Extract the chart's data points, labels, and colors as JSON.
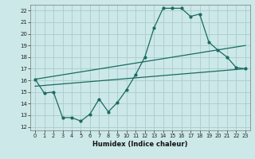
{
  "xlabel": "Humidex (Indice chaleur)",
  "bg_color": "#cce8e8",
  "grid_color": "#aacccc",
  "line_color": "#1a6b60",
  "xlim": [
    -0.5,
    23.5
  ],
  "ylim": [
    11.7,
    22.5
  ],
  "yticks": [
    12,
    13,
    14,
    15,
    16,
    17,
    18,
    19,
    20,
    21,
    22
  ],
  "xticks": [
    0,
    1,
    2,
    3,
    4,
    5,
    6,
    7,
    8,
    9,
    10,
    11,
    12,
    13,
    14,
    15,
    16,
    17,
    18,
    19,
    20,
    21,
    22,
    23
  ],
  "line1_x": [
    0,
    1,
    2,
    3,
    4,
    5,
    6,
    7,
    8,
    9,
    10,
    11,
    12,
    13,
    14,
    15,
    16,
    17,
    18,
    19,
    20,
    21,
    22,
    23
  ],
  "line1_y": [
    16.1,
    14.9,
    15.0,
    12.8,
    12.8,
    12.5,
    13.1,
    14.4,
    13.3,
    14.1,
    15.2,
    16.5,
    18.0,
    20.5,
    22.2,
    22.2,
    22.2,
    21.5,
    21.7,
    19.3,
    18.6,
    18.0,
    17.1,
    17.0
  ],
  "line2_x": [
    0,
    23
  ],
  "line2_y": [
    15.5,
    17.0
  ],
  "line3_x": [
    0,
    23
  ],
  "line3_y": [
    16.1,
    19.0
  ]
}
